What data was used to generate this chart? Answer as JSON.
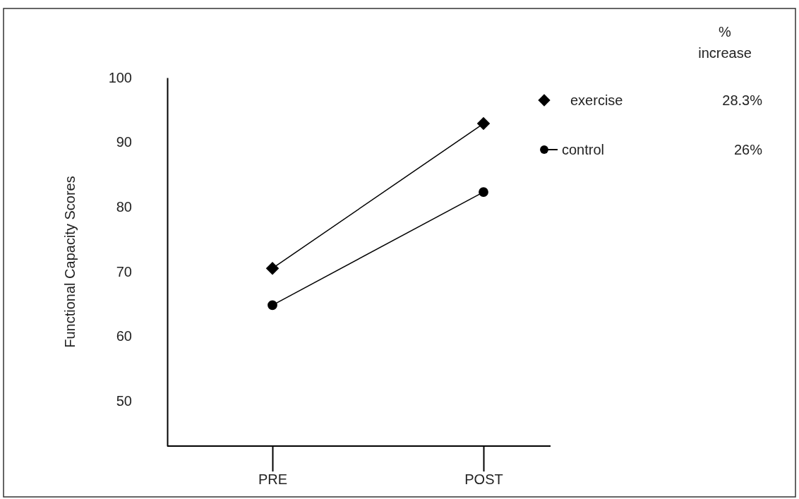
{
  "chart_data": {
    "type": "line",
    "ylabel": "Functional Capacity Scores",
    "categories": [
      "PRE",
      "POST"
    ],
    "series": [
      {
        "name": "exercise",
        "color": "#000000",
        "marker": "diamond",
        "values": [
          70.5,
          92.9
        ]
      },
      {
        "name": "control",
        "color": "#000000",
        "marker": "circle",
        "values": [
          64.8,
          82.3
        ]
      }
    ],
    "ylim": [
      43,
      100
    ],
    "yticks": [
      50,
      60,
      70,
      80,
      90,
      100
    ],
    "grid": false,
    "legend": "top right",
    "line_style": "solid",
    "annotations": [
      "% increase",
      "28.3%",
      "26%"
    ]
  }
}
